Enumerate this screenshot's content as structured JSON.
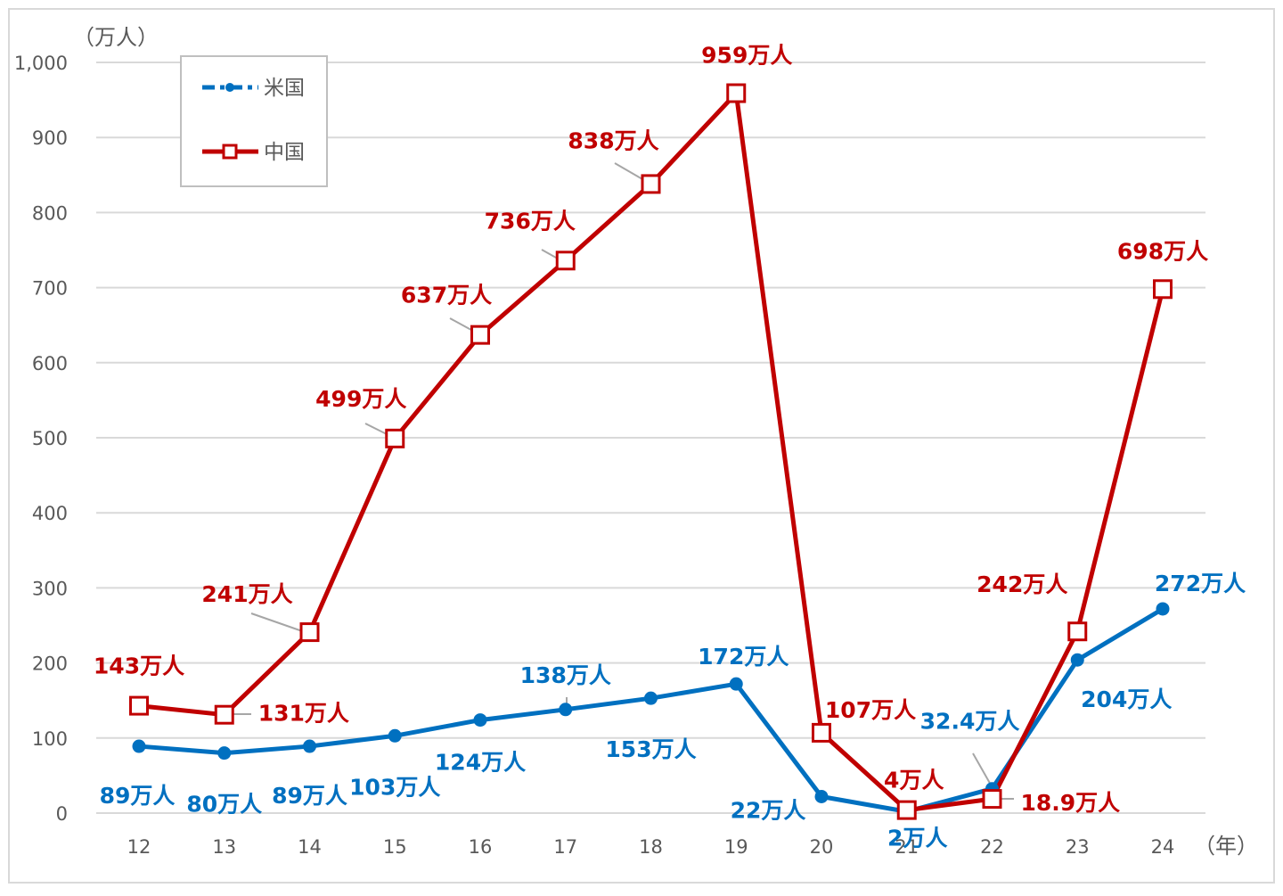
{
  "chart_data": {
    "type": "line",
    "y_unit_label": "（万人）",
    "x_unit_label": "（年）",
    "categories": [
      "12",
      "13",
      "14",
      "15",
      "16",
      "17",
      "18",
      "19",
      "20",
      "21",
      "22",
      "23",
      "24"
    ],
    "ylim": [
      0,
      1000
    ],
    "y_ticks": [
      "0",
      "100",
      "200",
      "300",
      "400",
      "500",
      "600",
      "700",
      "800",
      "900",
      "1,000"
    ],
    "y_tick_values": [
      0,
      100,
      200,
      300,
      400,
      500,
      600,
      700,
      800,
      900,
      1000
    ],
    "grid": true,
    "legend_position": "top-left",
    "series": [
      {
        "name": "米国",
        "color": "#0070C0",
        "marker": "circle",
        "values": [
          89,
          80,
          89,
          103,
          124,
          138,
          153,
          172,
          22,
          2,
          32.4,
          204,
          272
        ],
        "labels": [
          "89万人",
          "80万人",
          "89万人",
          "103万人",
          "124万人",
          "138万人",
          "153万人",
          "172万人",
          "22万人",
          "2万人",
          "32.4万人",
          "204万人",
          "272万人"
        ]
      },
      {
        "name": "中国",
        "color": "#C00000",
        "marker": "square",
        "values": [
          143,
          131,
          241,
          499,
          637,
          736,
          838,
          959,
          107,
          4,
          18.9,
          242,
          698
        ],
        "labels": [
          "143万人",
          "131万人",
          "241万人",
          "499万人",
          "637万人",
          "736万人",
          "838万人",
          "959万人",
          "107万人",
          "4万人",
          "18.9万人",
          "242万人",
          "698万人"
        ]
      }
    ]
  }
}
